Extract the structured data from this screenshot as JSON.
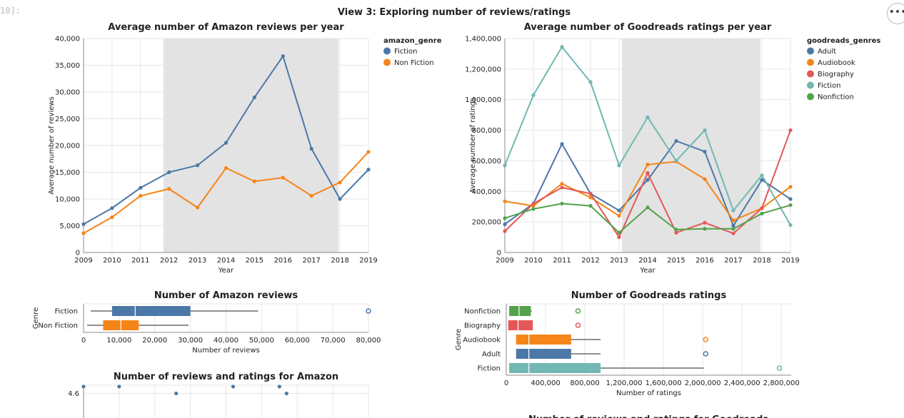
{
  "cell": {
    "prompt": "18]:",
    "menu_label": "•••"
  },
  "view_title": "View 3: Exploring number of reviews/ratings",
  "chart_data": [
    {
      "id": "amazon_line",
      "type": "line",
      "title": "Average number of Amazon reviews per year",
      "xlabel": "Year",
      "ylabel": "Average number of reviews",
      "x": [
        2009,
        2010,
        2011,
        2012,
        2013,
        2014,
        2015,
        2016,
        2017,
        2018,
        2019
      ],
      "xlim": [
        2009,
        2019
      ],
      "ylim": [
        0,
        40000
      ],
      "yticks": [
        0,
        5000,
        10000,
        15000,
        20000,
        25000,
        30000,
        35000,
        40000
      ],
      "ytick_labels": [
        "0",
        "5,000",
        "10,000",
        "15,000",
        "20,000",
        "25,000",
        "30,000",
        "35,000",
        "40,000"
      ],
      "highlight_range": [
        2011.8,
        2017.95
      ],
      "grid": true,
      "legend": {
        "title": "amazon_genre",
        "position": "right"
      },
      "series": [
        {
          "name": "Fiction",
          "color": "#4c78a8",
          "values": [
            5300,
            8300,
            12100,
            15000,
            16300,
            20500,
            29000,
            36700,
            19400,
            10000,
            15500
          ]
        },
        {
          "name": "Non Fiction",
          "color": "#f58518",
          "values": [
            3600,
            6600,
            10600,
            11900,
            8400,
            15800,
            13300,
            14000,
            10600,
            13100,
            18800
          ]
        }
      ]
    },
    {
      "id": "goodreads_line",
      "type": "line",
      "title": "Average number of Goodreads ratings per year",
      "xlabel": "Year",
      "ylabel": "Average number of ratings",
      "x": [
        2009,
        2010,
        2011,
        2012,
        2013,
        2014,
        2015,
        2016,
        2017,
        2018,
        2019
      ],
      "xlim": [
        2009,
        2019
      ],
      "ylim": [
        0,
        1400000
      ],
      "yticks": [
        0,
        200000,
        400000,
        600000,
        800000,
        1000000,
        1200000,
        1400000
      ],
      "ytick_labels": [
        "0",
        "200,000",
        "400,000",
        "600,000",
        "800,000",
        "1,000,000",
        "1,200,000",
        "1,400,000"
      ],
      "highlight_range": [
        2013.1,
        2017.95
      ],
      "grid": true,
      "legend": {
        "title": "goodreads_genres",
        "position": "right"
      },
      "series": [
        {
          "name": "Adult",
          "color": "#4c78a8",
          "values": [
            185000,
            320000,
            710000,
            385000,
            275000,
            475000,
            730000,
            660000,
            175000,
            475000,
            350000
          ]
        },
        {
          "name": "Audiobook",
          "color": "#f58518",
          "values": [
            335000,
            305000,
            450000,
            360000,
            240000,
            575000,
            595000,
            480000,
            210000,
            290000,
            430000
          ]
        },
        {
          "name": "Biography",
          "color": "#e45756",
          "values": [
            140000,
            320000,
            425000,
            385000,
            100000,
            520000,
            130000,
            195000,
            125000,
            290000,
            800000
          ]
        },
        {
          "name": "Fiction",
          "color": "#72b7b2",
          "values": [
            570000,
            1030000,
            1345000,
            1115000,
            570000,
            885000,
            600000,
            800000,
            275000,
            505000,
            180000
          ]
        },
        {
          "name": "Nonfiction",
          "color": "#54a24b",
          "values": [
            225000,
            285000,
            320000,
            305000,
            130000,
            295000,
            150000,
            155000,
            155000,
            255000,
            310000
          ]
        }
      ]
    },
    {
      "id": "amazon_box",
      "type": "box",
      "title": "Number of Amazon reviews",
      "xlabel": "Number of reviews",
      "ylabel": "Genre",
      "xlim": [
        0,
        80000
      ],
      "xticks": [
        0,
        10000,
        20000,
        30000,
        40000,
        50000,
        60000,
        70000,
        80000
      ],
      "xtick_labels": [
        "0",
        "10,000",
        "20,000",
        "30,000",
        "40,000",
        "50,000",
        "60,000",
        "70,000",
        "80,000"
      ],
      "grid": true,
      "boxes": [
        {
          "category": "Fiction",
          "color": "#4c78a8",
          "min": 2000,
          "q1": 8000,
          "median": 14500,
          "q3": 30000,
          "max": 49000,
          "outliers": [
            80000
          ]
        },
        {
          "category": "Non Fiction",
          "color": "#f58518",
          "min": 1000,
          "q1": 5500,
          "median": 10500,
          "q3": 15500,
          "max": 29500,
          "outliers": []
        }
      ]
    },
    {
      "id": "goodreads_box",
      "type": "box",
      "title": "Number of Goodreads ratings",
      "xlabel": "Number of ratings",
      "ylabel": "Genre",
      "xlim": [
        0,
        2900000
      ],
      "xticks": [
        0,
        400000,
        800000,
        1200000,
        1600000,
        2000000,
        2400000,
        2800000
      ],
      "xtick_labels": [
        "0",
        "400,000",
        "800,000",
        "1,200,000",
        "1,600,000",
        "2,000,000",
        "2,400,000",
        "2,800,000"
      ],
      "grid": true,
      "boxes": [
        {
          "category": "Nonfiction",
          "color": "#54a24b",
          "min": 30000,
          "q1": 30000,
          "median": 130000,
          "q3": 250000,
          "max": 260000,
          "outliers": [
            730000
          ]
        },
        {
          "category": "Biography",
          "color": "#e45756",
          "min": 20000,
          "q1": 20000,
          "median": 120000,
          "q3": 270000,
          "max": 270000,
          "outliers": [
            730000
          ]
        },
        {
          "category": "Audiobook",
          "color": "#f58518",
          "min": 100000,
          "q1": 100000,
          "median": 230000,
          "q3": 660000,
          "max": 960000,
          "outliers": [
            2030000
          ]
        },
        {
          "category": "Adult",
          "color": "#4c78a8",
          "min": 100000,
          "q1": 100000,
          "median": 230000,
          "q3": 660000,
          "max": 960000,
          "outliers": [
            2030000
          ]
        },
        {
          "category": "Fiction",
          "color": "#72b7b2",
          "min": 30000,
          "q1": 30000,
          "median": 230000,
          "q3": 960000,
          "max": 2010000,
          "outliers": [
            2780000
          ]
        }
      ]
    },
    {
      "id": "amazon_scatter",
      "type": "scatter",
      "title": "Number of reviews and ratings for Amazon",
      "ytick_labels": [
        "4.6"
      ],
      "points": [
        {
          "x": 0,
          "y": 4.7
        },
        {
          "x": 10000,
          "y": 4.7
        },
        {
          "x": 26000,
          "y": 4.6
        },
        {
          "x": 42000,
          "y": 4.7
        },
        {
          "x": 55000,
          "y": 4.7
        },
        {
          "x": 57000,
          "y": 4.6
        }
      ]
    },
    {
      "id": "goodreads_scatter_title",
      "type": "scatter",
      "title": "Number of reviews and ratings for Goodreads"
    }
  ]
}
